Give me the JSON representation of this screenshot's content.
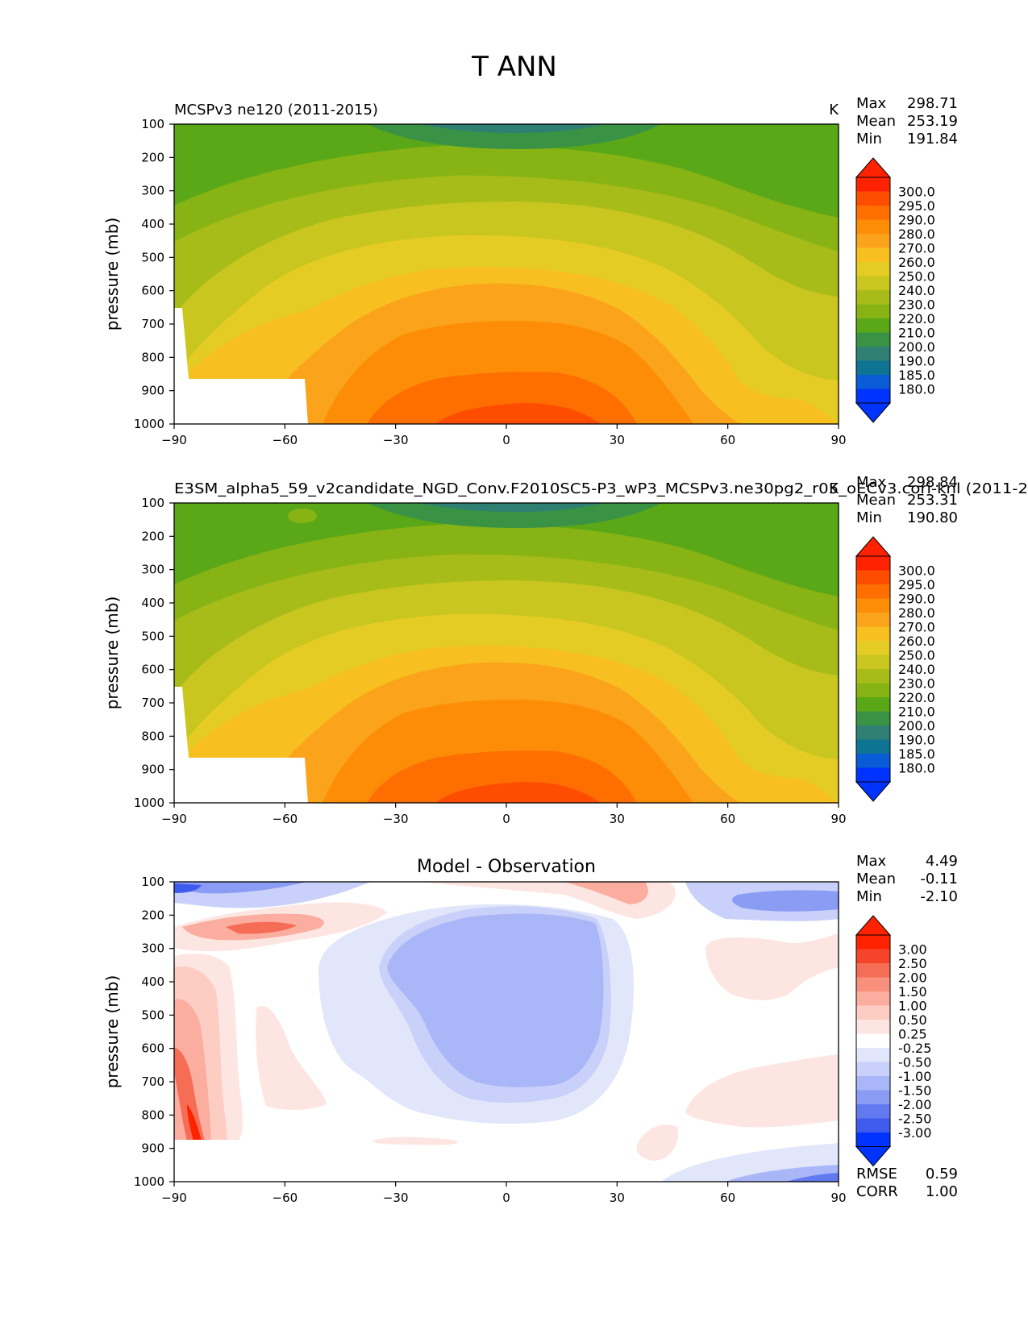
{
  "chart_data": {
    "type": "contour",
    "suptitle": "T ANN",
    "panels": [
      {
        "id": "test",
        "title_left": "MCSPv3 ne120 (2011-2015)",
        "title_center": "",
        "units": "K",
        "ylabel": "pressure (mb)",
        "xlabel": "",
        "xlim": [
          -90,
          90
        ],
        "ylim": [
          100,
          1000
        ],
        "xticks": [
          "−90",
          "−60",
          "−30",
          "0",
          "30",
          "60",
          "90"
        ],
        "xtick_values": [
          -90,
          -60,
          -30,
          0,
          30,
          60,
          90
        ],
        "yticks": [
          "100",
          "200",
          "300",
          "400",
          "500",
          "600",
          "700",
          "800",
          "900",
          "1000"
        ],
        "stats": [
          [
            "Max",
            "298.71"
          ],
          [
            "Mean",
            "253.19"
          ],
          [
            "Min",
            "191.84"
          ]
        ],
        "colorbar_labels": [
          "300.0",
          "295.0",
          "290.0",
          "280.0",
          "270.0",
          "260.0",
          "250.0",
          "240.0",
          "230.0",
          "220.0",
          "210.0",
          "200.0",
          "190.0",
          "185.0",
          "180.0"
        ],
        "colorbar_colors": [
          "#ff2200",
          "#ff4d00",
          "#ff6e00",
          "#fd8d06",
          "#fba31a",
          "#f8bf20",
          "#e4cc25",
          "#c8c61f",
          "#a7bc19",
          "#87b414",
          "#5aa817",
          "#3a9344",
          "#307f73",
          "#0d7493",
          "#0a5bd6",
          "#0033ff"
        ]
      },
      {
        "id": "ref",
        "title_left": "E3SM_alpha5_59_v2candidate_NGD_Conv.F2010SC5-P3_wP3_MCSPv3.ne30pg2_r05_oECv3.cori-knl (2011-2",
        "title_center": "",
        "units": "K",
        "ylabel": "pressure (mb)",
        "xlabel": "",
        "xlim": [
          -90,
          90
        ],
        "ylim": [
          100,
          1000
        ],
        "xticks": [
          "−90",
          "−60",
          "−30",
          "0",
          "30",
          "60",
          "90"
        ],
        "xtick_values": [
          -90,
          -60,
          -30,
          0,
          30,
          60,
          90
        ],
        "yticks": [
          "100",
          "200",
          "300",
          "400",
          "500",
          "600",
          "700",
          "800",
          "900",
          "1000"
        ],
        "stats": [
          [
            "Max",
            "298.84"
          ],
          [
            "Mean",
            "253.31"
          ],
          [
            "Min",
            "190.80"
          ]
        ],
        "colorbar_labels": [
          "300.0",
          "295.0",
          "290.0",
          "280.0",
          "270.0",
          "260.0",
          "250.0",
          "240.0",
          "230.0",
          "220.0",
          "210.0",
          "200.0",
          "190.0",
          "185.0",
          "180.0"
        ],
        "colorbar_colors": [
          "#ff2200",
          "#ff4d00",
          "#ff6e00",
          "#fd8d06",
          "#fba31a",
          "#f8bf20",
          "#e4cc25",
          "#c8c61f",
          "#a7bc19",
          "#87b414",
          "#5aa817",
          "#3a9344",
          "#307f73",
          "#0d7493",
          "#0a5bd6",
          "#0033ff"
        ]
      },
      {
        "id": "diff",
        "title_left": "",
        "title_center": "Model - Observation",
        "units": "",
        "ylabel": "pressure (mb)",
        "xlabel": "",
        "xlim": [
          -90,
          90
        ],
        "ylim": [
          100,
          1000
        ],
        "xticks": [
          "−90",
          "−60",
          "−30",
          "0",
          "30",
          "60",
          "90"
        ],
        "xtick_values": [
          -90,
          -60,
          -30,
          0,
          30,
          60,
          90
        ],
        "yticks": [
          "100",
          "200",
          "300",
          "400",
          "500",
          "600",
          "700",
          "800",
          "900",
          "1000"
        ],
        "stats": [
          [
            "Max",
            "4.49"
          ],
          [
            "Mean",
            "-0.11"
          ],
          [
            "Min",
            "-2.10"
          ]
        ],
        "colorbar_labels": [
          "3.00",
          "2.50",
          "2.00",
          "1.50",
          "1.00",
          "0.50",
          "0.25",
          "-0.25",
          "-0.50",
          "-1.00",
          "-1.50",
          "-2.00",
          "-2.50",
          "-3.00"
        ],
        "colorbar_colors": [
          "#ff2200",
          "#f5442a",
          "#f56d55",
          "#f98f7d",
          "#fbaea0",
          "#fdcdc4",
          "#fde6e2",
          "#ffffff",
          "#e2e6fb",
          "#c9d0f9",
          "#a9b6f7",
          "#8a9cf4",
          "#6279f0",
          "#3f5bee",
          "#0033ff"
        ],
        "footer_stats": [
          [
            "RMSE",
            "0.59"
          ],
          [
            "CORR",
            "1.00"
          ]
        ]
      }
    ]
  }
}
